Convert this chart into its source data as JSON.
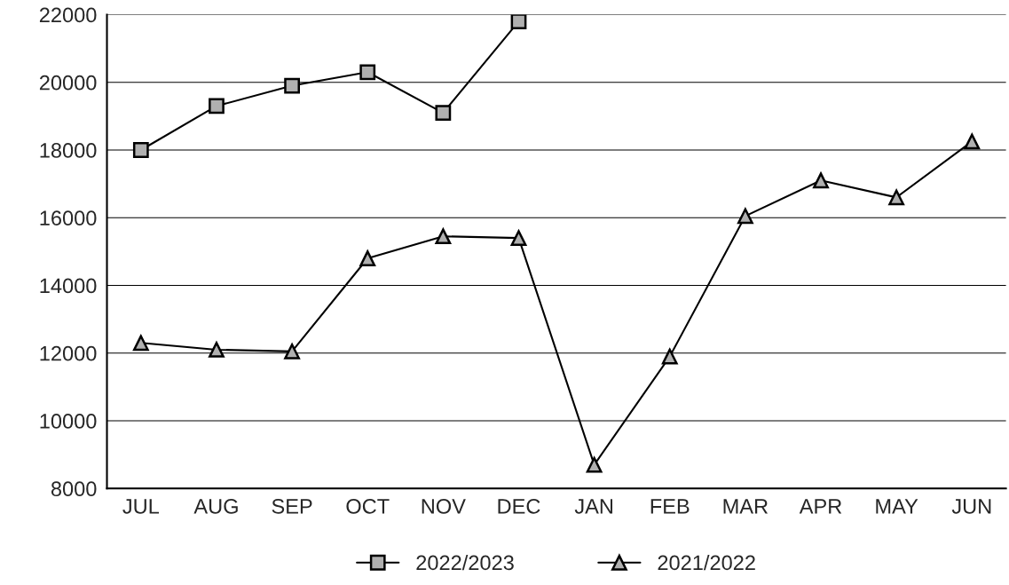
{
  "chart_data": {
    "type": "line",
    "categories": [
      "JUL",
      "AUG",
      "SEP",
      "OCT",
      "NOV",
      "DEC",
      "JAN",
      "FEB",
      "MAR",
      "APR",
      "MAY",
      "JUN"
    ],
    "series": [
      {
        "name": "2022/2023",
        "color": "#000000",
        "marker": "square",
        "values": [
          18000,
          19300,
          19900,
          20300,
          19100,
          21800,
          null,
          null,
          null,
          null,
          null,
          null
        ]
      },
      {
        "name": "2021/2022",
        "color": "#000000",
        "marker": "triangle",
        "values": [
          12300,
          12100,
          12050,
          14800,
          15450,
          15400,
          8700,
          11900,
          16050,
          17100,
          16600,
          18250
        ]
      }
    ],
    "ylim": [
      8000,
      22000
    ],
    "yticks": [
      8000,
      10000,
      12000,
      14000,
      16000,
      18000,
      20000,
      22000
    ],
    "grid": "y",
    "legend": "bottom",
    "line_style": "solid"
  }
}
